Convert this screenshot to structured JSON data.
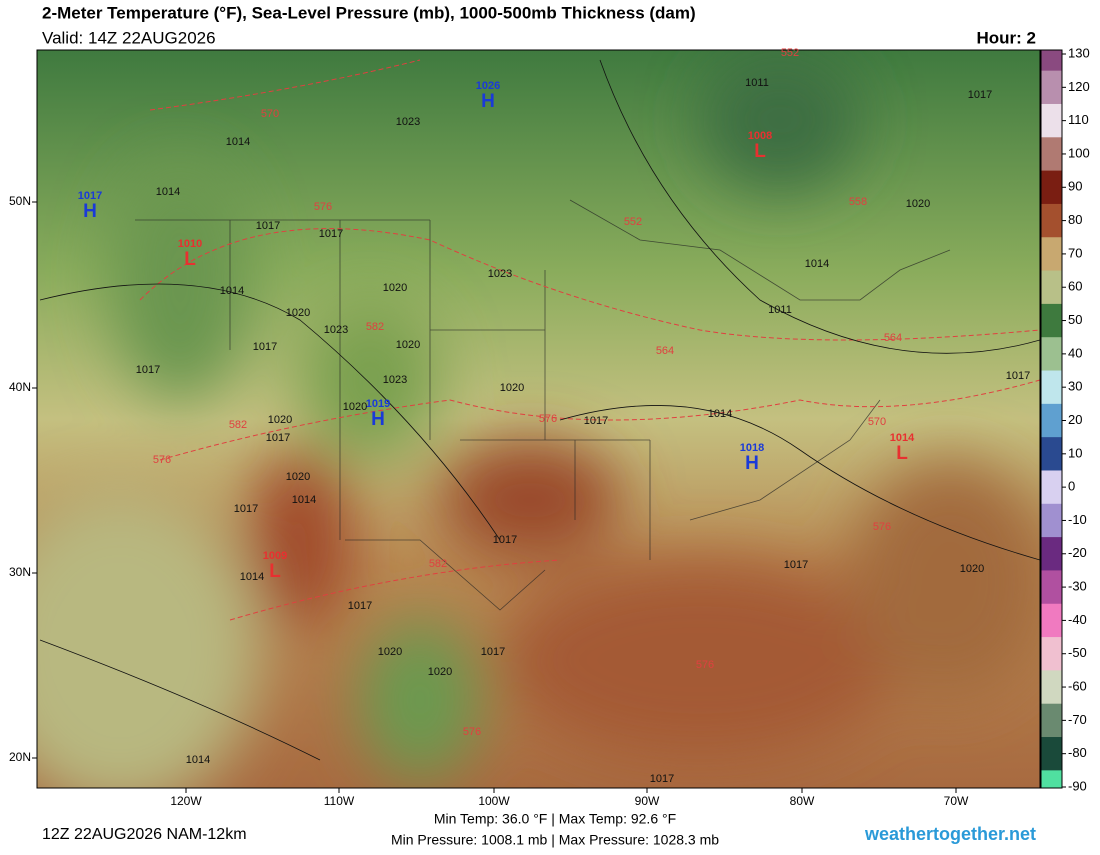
{
  "header": {
    "title": "2-Meter Temperature (°F), Sea-Level Pressure (mb), 1000-500mb Thickness (dam)",
    "valid": "Valid: 14Z 22AUG2026",
    "hour": "Hour: 2"
  },
  "map": {
    "latitude_labels": [
      "50N",
      "40N",
      "30N",
      "20N"
    ],
    "longitude_labels": [
      "120W",
      "110W",
      "100W",
      "90W",
      "80W",
      "70W"
    ],
    "pressure_centers": [
      {
        "type": "H",
        "value": 1026
      },
      {
        "type": "L",
        "value": 1008
      },
      {
        "type": "H",
        "value": 1017
      },
      {
        "type": "L",
        "value": 1010
      },
      {
        "type": "H",
        "value": 1019
      },
      {
        "type": "H",
        "value": 1018
      },
      {
        "type": "L",
        "value": 1014
      },
      {
        "type": "L",
        "value": 1009
      }
    ],
    "isobar_labels": [
      1011,
      1017,
      1023,
      1014,
      1014,
      1020,
      1017,
      1017,
      1014,
      1023,
      1020,
      1014,
      1020,
      1023,
      1020,
      1017,
      1011,
      1017,
      1023,
      1020,
      1017,
      1020,
      1014,
      1017,
      1020,
      1017,
      1020,
      1014,
      1017,
      1017,
      1014,
      1017,
      1020,
      1017,
      1020,
      1017,
      1020,
      1014,
      1017
    ],
    "thickness_labels": [
      552,
      570,
      576,
      552,
      558,
      582,
      564,
      564,
      576,
      582,
      570,
      576,
      576,
      582,
      576,
      576
    ]
  },
  "colorbar": {
    "ticks": [
      130,
      120,
      110,
      100,
      90,
      80,
      70,
      60,
      50,
      40,
      30,
      20,
      10,
      0,
      -10,
      -20,
      -30,
      -40,
      -50,
      -60,
      -70,
      -80,
      -90
    ],
    "colors": [
      "#8a4a80",
      "#b88fae",
      "#ece0ea",
      "#b07a72",
      "#7a1e12",
      "#a4502e",
      "#c8a870",
      "#b8c088",
      "#3e7a3e",
      "#9cc090",
      "#bfe6ec",
      "#5fa0d0",
      "#2a4a90",
      "#d8d0f0",
      "#a090d0",
      "#6a2a80",
      "#b050a0",
      "#f07ac0",
      "#f0c0d0",
      "#d0d8c0",
      "#6a8a70",
      "#1a4a3a",
      "#50e0a0"
    ]
  },
  "footer": {
    "run": "12Z 22AUG2026 NAM-12km",
    "temps": "Min Temp:  36.0 °F | Max Temp:  92.6 °F",
    "pressures": "Min Pressure: 1008.1 mb | Max Pressure: 1028.3 mb",
    "site": "weathertogether.net"
  }
}
